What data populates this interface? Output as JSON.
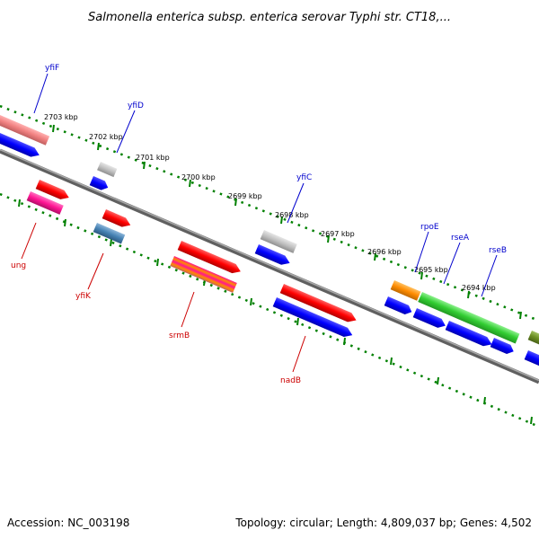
{
  "title": "Salmonella enterica subsp. enterica serovar Typhi str. CT18,...",
  "footer": {
    "accession": "Accession: NC_003198",
    "summary": "Topology: circular; Length: 4,809,037 bp; Genes: 4,502"
  },
  "ticks": [
    "2703 kbp",
    "2702 kbp",
    "2701 kbp",
    "2700 kbp",
    "2699 kbp",
    "2698 kbp",
    "2697 kbp",
    "2696 kbp",
    "2695 kbp",
    "2694 kbp"
  ],
  "genes_upper": [
    "yfiF",
    "yfiD",
    "yfiC",
    "rpoE",
    "rseA",
    "rseB"
  ],
  "genes_lower": [
    "ung",
    "yfiK",
    "srmB",
    "nadB"
  ],
  "colors": {
    "backbone": "#808080",
    "cds_blue": "#0000ff",
    "red": "#ff0000",
    "pink": "#f08080",
    "magenta": "#ff1493",
    "steel": "#4682b4",
    "gray": "#c0c0c0",
    "orange": "#ff8c00",
    "green": "#32cd32",
    "olive": "#6b8e23",
    "tick_green": "#008000",
    "label_blue": "#0000cd",
    "label_red": "#cc0000"
  }
}
